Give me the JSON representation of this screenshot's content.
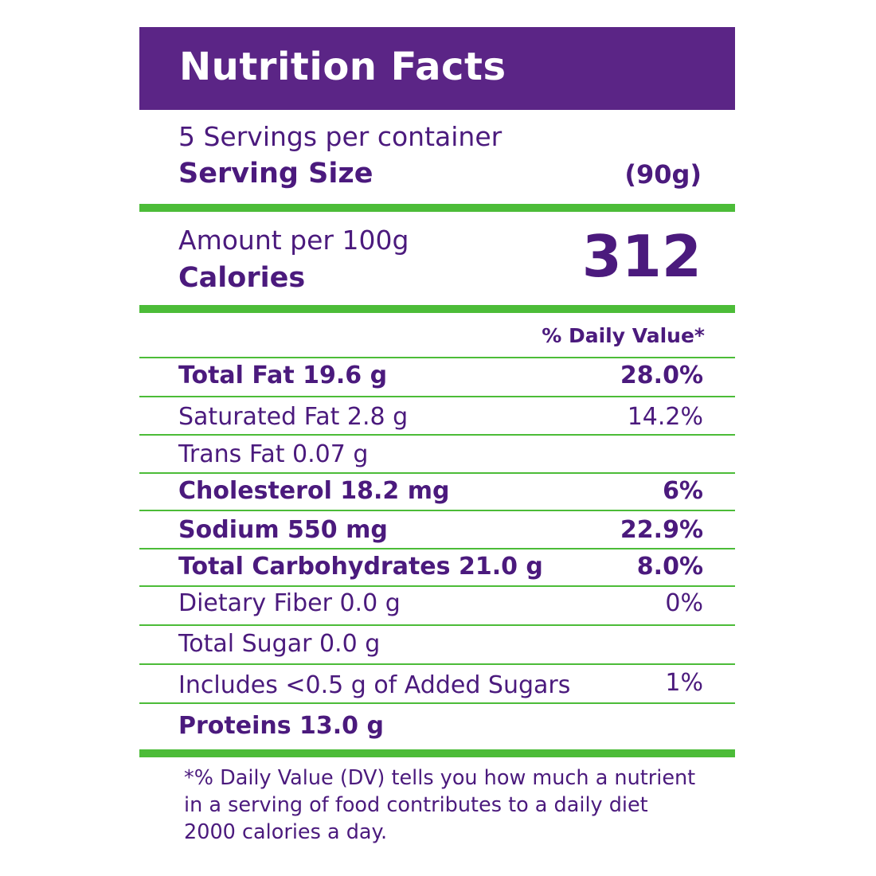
{
  "title": "Nutrition Facts",
  "servings_per_container": "5 Servings per container",
  "serving_size": {
    "label": "Serving Size",
    "value": "(90g)"
  },
  "amount_per": "Amount per 100g",
  "calories": {
    "label": "Calories",
    "value": "312"
  },
  "daily_value_header": "% Daily Value*",
  "nutrients": [
    {
      "name": "Total Fat 19.6 g",
      "percent": "28.0%",
      "bold": true
    },
    {
      "name": "Saturated Fat 2.8 g",
      "percent": "14.2%",
      "bold": false
    },
    {
      "name": "Trans Fat 0.07 g",
      "percent": "",
      "bold": false
    },
    {
      "name": "Cholesterol 18.2 mg",
      "percent": "6%",
      "bold": true
    },
    {
      "name": "Sodium 550 mg",
      "percent": "22.9%",
      "bold": true
    },
    {
      "name": "Total Carbohydrates 21.0 g",
      "percent": "8.0%",
      "bold": true
    },
    {
      "name": "Dietary Fiber 0.0 g",
      "percent": "0%",
      "bold": false
    },
    {
      "name": "Total Sugar 0.0 g",
      "percent": "",
      "bold": false
    },
    {
      "name": "Includes <0.5 g of Added Sugars",
      "percent": "1%",
      "bold": false
    },
    {
      "name": "Proteins 13.0 g",
      "percent": "",
      "bold": true
    }
  ],
  "footnote": [
    "*% Daily Value (DV) tells you how much a nutrient",
    "in a serving of food contributes to a daily diet",
    "2000 calories a day."
  ],
  "colors": {
    "header_bg": "#5b2586",
    "text": "#4b1a7d",
    "rule": "#4cbc38"
  }
}
